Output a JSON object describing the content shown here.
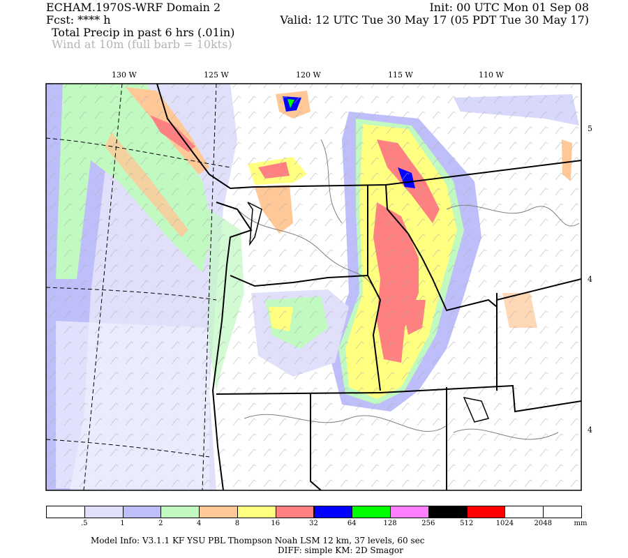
{
  "header": {
    "model_title": "ECHAM.1970S-WRF Domain 2",
    "init": "Init: 00 UTC Mon 01 Sep 08",
    "fcst": "Fcst: **** h",
    "valid": "Valid: 12 UTC Tue 30 May 17 (05 PDT Tue 30 May 17)",
    "field1": "Total Precip in past 6 hrs (.01in)",
    "field2": "Wind at 10m (full barb = 10kts)"
  },
  "map": {
    "lon_labels": [
      "130 W",
      "125 W",
      "120 W",
      "115 W",
      "110 W"
    ],
    "lat_labels": [
      "5",
      "4",
      "4"
    ],
    "colors": {
      "boundary": "#000000",
      "contour": "#808080",
      "wind_barb": "#a0a0a0",
      "wind_label": "#b0b0b0"
    }
  },
  "colorbar": {
    "colors": [
      "#ffffff",
      "#e0e0fa",
      "#bebefa",
      "#c0fac0",
      "#ffc896",
      "#ffff80",
      "#ff8080",
      "#0000ff",
      "#00ff00",
      "#ff80ff",
      "#000000",
      "#ff0000",
      "#ffffff",
      "#ffffff"
    ],
    "labels": [
      ".5",
      "1",
      "2",
      "4",
      "8",
      "16",
      "32",
      "64",
      "128",
      "256",
      "512",
      "1024",
      "2048"
    ],
    "unit": "mm"
  },
  "footer": {
    "line1": "Model Info: V3.1.1    KF      YSU PBL   Thompson    Noah LSM   12 km,    37 levels,    60 sec",
    "line2": "DIFF: simple KM: 2D Smagor"
  }
}
